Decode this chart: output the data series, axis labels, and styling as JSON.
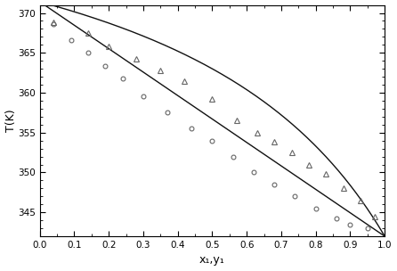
{
  "title": "",
  "xlabel": "x₁,y₁",
  "ylabel": "T(K)",
  "xlim": [
    0.0,
    1.0
  ],
  "ylim": [
    342,
    371
  ],
  "yticks": [
    345,
    350,
    355,
    360,
    365,
    370
  ],
  "xticks": [
    0.0,
    0.1,
    0.2,
    0.3,
    0.4,
    0.5,
    0.6,
    0.7,
    0.8,
    0.9,
    1.0
  ],
  "T_heptane": 371.4,
  "T_hexane": 342.0,
  "alpha": 2.5,
  "exp_bubble_x": [
    0.04,
    0.09,
    0.14,
    0.19,
    0.24,
    0.3,
    0.37,
    0.44,
    0.5,
    0.56,
    0.62,
    0.68,
    0.74,
    0.8,
    0.86,
    0.9,
    0.95
  ],
  "exp_bubble_T": [
    368.6,
    366.6,
    365.0,
    363.4,
    361.8,
    359.5,
    357.5,
    355.5,
    354.0,
    352.0,
    350.0,
    348.5,
    347.0,
    345.5,
    344.2,
    343.5,
    343.0
  ],
  "exp_dew_x": [
    0.04,
    0.14,
    0.2,
    0.28,
    0.35,
    0.42,
    0.5,
    0.57,
    0.63,
    0.68,
    0.73,
    0.78,
    0.83,
    0.88,
    0.93,
    0.97
  ],
  "exp_dew_T": [
    368.8,
    367.5,
    365.8,
    364.3,
    362.8,
    361.5,
    359.2,
    356.5,
    355.0,
    353.8,
    352.5,
    351.0,
    349.8,
    348.0,
    346.5,
    344.5
  ],
  "line_color": "#111111",
  "marker_color": "#666666",
  "background_color": "#ffffff"
}
